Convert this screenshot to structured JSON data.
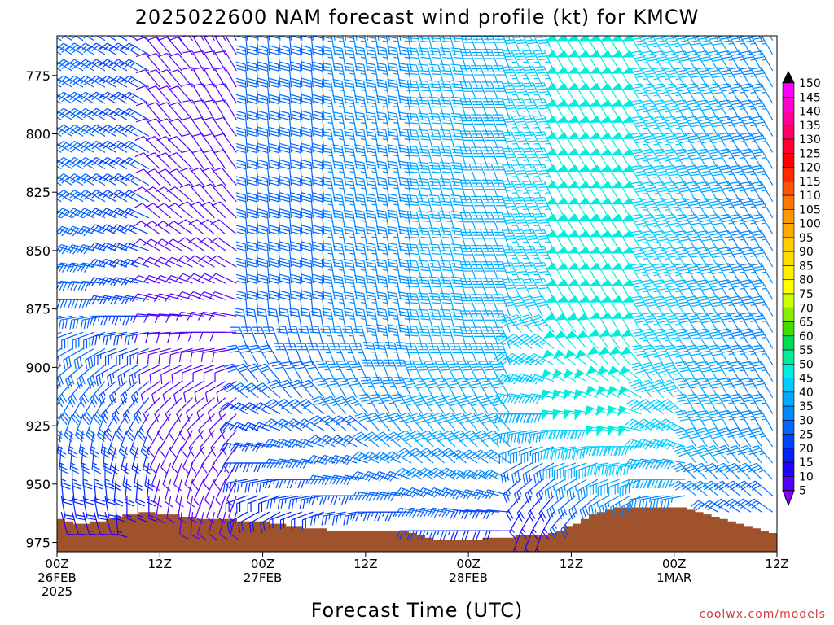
{
  "chart_data": {
    "type": "wind-barb-profile",
    "title": "2025022600 NAM forecast wind profile (kt) for KMCW",
    "xlabel": "Forecast Time (UTC)",
    "ylabel": "",
    "credit": "coolwx.com/models",
    "y_axis": {
      "scale": "pressure (hPa), increasing downward",
      "range": [
        979,
        758
      ],
      "tick_labels": [
        "775",
        "800",
        "825",
        "850",
        "875",
        "900",
        "925",
        "950",
        "975"
      ]
    },
    "x_axis": {
      "range_hours": [
        0,
        84
      ],
      "ticks": [
        {
          "lines": [
            "00Z",
            "26FEB",
            "2025"
          ]
        },
        {
          "lines": [
            "12Z"
          ]
        },
        {
          "lines": [
            "00Z",
            "27FEB"
          ]
        },
        {
          "lines": [
            "12Z"
          ]
        },
        {
          "lines": [
            "00Z",
            "28FEB"
          ]
        },
        {
          "lines": [
            "12Z"
          ]
        },
        {
          "lines": [
            "00Z",
            "1MAR"
          ]
        },
        {
          "lines": [
            "12Z"
          ]
        }
      ]
    },
    "colorbar": {
      "labels": [
        "150",
        "145",
        "140",
        "135",
        "130",
        "125",
        "120",
        "115",
        "110",
        "105",
        "100",
        "95",
        "90",
        "85",
        "80",
        "75",
        "70",
        "65",
        "60",
        "55",
        "50",
        "45",
        "40",
        "35",
        "30",
        "25",
        "20",
        "15",
        "10",
        "5"
      ],
      "colors": [
        "#ff00ff",
        "#ff00cc",
        "#ff0099",
        "#ff0066",
        "#ff0033",
        "#ff0000",
        "#ff2a00",
        "#ff5500",
        "#ff7700",
        "#ff9900",
        "#ffaa00",
        "#ffcc00",
        "#ffdd00",
        "#ffee00",
        "#ffff00",
        "#ccff00",
        "#88ee00",
        "#44dd00",
        "#00dd55",
        "#00ee99",
        "#00eedd",
        "#00ccff",
        "#00aaff",
        "#0088ff",
        "#0066ff",
        "#0044ff",
        "#0022ff",
        "#2200ff",
        "#5500ff",
        "#8800ff"
      ]
    },
    "surface_pressure_hPa": [
      965,
      966,
      967,
      967,
      966,
      966,
      965,
      964,
      963,
      963,
      962,
      962,
      963,
      963,
      963,
      964,
      964,
      965,
      965,
      965,
      965,
      965,
      966,
      966,
      966,
      966,
      967,
      967,
      968,
      968,
      969,
      969,
      969,
      970,
      970,
      970,
      970,
      970,
      970,
      970,
      970,
      970,
      970,
      971,
      972,
      973,
      974,
      974,
      974,
      974,
      974,
      974,
      973,
      973,
      973,
      973,
      972,
      972,
      972,
      972,
      971,
      970,
      968,
      967,
      965,
      963,
      962,
      961,
      960,
      960,
      960,
      960,
      960,
      960,
      960,
      960,
      960,
      961,
      962,
      963,
      964,
      965,
      966,
      967,
      968,
      969,
      970,
      971,
      972
    ],
    "wind_levels_hPa": [
      970,
      962,
      955,
      948,
      941,
      934,
      927,
      920,
      913,
      906,
      899,
      892,
      885,
      878,
      871,
      864,
      857,
      850,
      843,
      836,
      829,
      822,
      815,
      808,
      801,
      794,
      787,
      780,
      773,
      766,
      760
    ],
    "wind_direction_deg": [
      [
        160,
        165,
        170,
        175,
        180,
        185,
        190,
        200,
        210,
        220,
        230,
        240,
        250,
        260,
        270,
        275,
        280,
        285,
        290,
        295,
        300,
        300,
        300,
        300,
        300,
        300,
        300,
        300,
        300,
        300,
        300
      ],
      [
        170,
        175,
        180,
        185,
        190,
        195,
        200,
        210,
        220,
        230,
        240,
        250,
        260,
        270,
        280,
        285,
        290,
        290,
        295,
        295,
        300,
        300,
        300,
        300,
        300,
        300,
        300,
        300,
        300,
        300,
        300
      ],
      [
        180,
        185,
        190,
        195,
        200,
        205,
        210,
        215,
        225,
        235,
        245,
        255,
        265,
        275,
        285,
        290,
        295,
        300,
        305,
        310,
        310,
        315,
        315,
        315,
        320,
        320,
        320,
        320,
        320,
        320,
        320
      ],
      [
        190,
        195,
        200,
        205,
        210,
        215,
        220,
        225,
        230,
        240,
        250,
        260,
        270,
        280,
        290,
        295,
        300,
        305,
        310,
        315,
        320,
        320,
        325,
        325,
        325,
        330,
        330,
        330,
        330,
        330,
        330
      ],
      [
        230,
        240,
        250,
        260,
        270,
        280,
        290,
        300,
        310,
        320,
        330,
        340,
        350,
        355,
        355,
        355,
        355,
        355,
        355,
        355,
        355,
        355,
        355,
        355,
        355,
        355,
        355,
        355,
        355,
        355,
        355
      ],
      [
        240,
        250,
        260,
        270,
        280,
        290,
        300,
        310,
        320,
        330,
        340,
        345,
        350,
        355,
        355,
        355,
        355,
        355,
        355,
        355,
        355,
        355,
        355,
        355,
        355,
        355,
        355,
        355,
        355,
        355,
        355
      ],
      [
        250,
        260,
        270,
        280,
        290,
        300,
        310,
        320,
        330,
        335,
        340,
        345,
        350,
        350,
        350,
        350,
        350,
        350,
        350,
        350,
        350,
        350,
        350,
        350,
        350,
        350,
        350,
        350,
        350,
        350,
        350
      ],
      [
        260,
        270,
        280,
        290,
        300,
        310,
        320,
        330,
        335,
        340,
        345,
        350,
        350,
        350,
        350,
        350,
        350,
        350,
        350,
        350,
        350,
        350,
        350,
        350,
        350,
        350,
        350,
        350,
        350,
        350,
        350
      ],
      [
        270,
        280,
        290,
        300,
        310,
        315,
        320,
        325,
        330,
        335,
        340,
        345,
        345,
        345,
        345,
        345,
        345,
        345,
        345,
        345,
        345,
        345,
        345,
        345,
        345,
        345,
        345,
        345,
        345,
        345,
        345
      ],
      [
        270,
        275,
        285,
        295,
        305,
        315,
        320,
        325,
        330,
        335,
        340,
        340,
        340,
        340,
        340,
        340,
        340,
        340,
        340,
        340,
        340,
        340,
        340,
        340,
        340,
        340,
        340,
        340,
        340,
        340,
        340
      ],
      [
        200,
        210,
        220,
        230,
        240,
        250,
        260,
        270,
        280,
        290,
        300,
        310,
        320,
        330,
        335,
        335,
        335,
        335,
        335,
        335,
        335,
        335,
        335,
        335,
        335,
        335,
        335,
        335,
        335,
        335,
        335
      ],
      [
        210,
        220,
        230,
        240,
        250,
        260,
        270,
        280,
        290,
        300,
        310,
        320,
        325,
        330,
        330,
        330,
        330,
        330,
        330,
        330,
        330,
        330,
        330,
        330,
        330,
        330,
        330,
        330,
        330,
        330,
        330
      ],
      [
        220,
        230,
        240,
        250,
        260,
        270,
        280,
        290,
        300,
        310,
        320,
        325,
        330,
        330,
        330,
        330,
        330,
        330,
        330,
        330,
        330,
        330,
        330,
        330,
        330,
        330,
        330,
        330,
        330,
        330,
        330
      ],
      [
        240,
        250,
        260,
        270,
        280,
        290,
        300,
        310,
        320,
        325,
        330,
        330,
        330,
        330,
        330,
        330,
        330,
        330,
        330,
        330,
        330,
        330,
        330,
        330,
        330,
        330,
        330,
        330,
        330,
        330,
        330
      ],
      [
        290,
        300,
        310,
        315,
        320,
        325,
        330,
        330,
        330,
        330,
        330,
        330,
        330,
        330,
        330,
        330,
        330,
        330,
        330,
        330,
        330,
        330,
        330,
        330,
        330,
        330,
        330,
        330,
        330,
        330,
        330
      ],
      [
        300,
        305,
        310,
        315,
        320,
        325,
        330,
        330,
        330,
        330,
        330,
        330,
        330,
        330,
        330,
        330,
        330,
        330,
        330,
        330,
        330,
        330,
        330,
        330,
        330,
        330,
        330,
        330,
        330,
        330,
        330
      ]
    ],
    "wind_speed_kt": [
      [
        15,
        15,
        20,
        20,
        25,
        25,
        25,
        30,
        30,
        30,
        30,
        30,
        30,
        30,
        30,
        30,
        30,
        30,
        30,
        30,
        30,
        30,
        30,
        30,
        30,
        30,
        30,
        30,
        30,
        30,
        30
      ],
      [
        15,
        15,
        15,
        20,
        20,
        20,
        25,
        25,
        25,
        25,
        25,
        25,
        25,
        25,
        25,
        25,
        25,
        25,
        25,
        25,
        25,
        25,
        25,
        25,
        25,
        25,
        25,
        25,
        25,
        25,
        25
      ],
      [
        10,
        10,
        10,
        10,
        10,
        10,
        10,
        10,
        10,
        10,
        10,
        10,
        10,
        10,
        10,
        10,
        10,
        10,
        10,
        10,
        10,
        10,
        10,
        10,
        10,
        10,
        10,
        10,
        10,
        10,
        10
      ],
      [
        10,
        10,
        10,
        10,
        10,
        10,
        10,
        10,
        10,
        10,
        10,
        10,
        10,
        10,
        10,
        10,
        10,
        10,
        10,
        10,
        10,
        10,
        10,
        10,
        10,
        10,
        10,
        10,
        10,
        10,
        10
      ],
      [
        15,
        20,
        20,
        25,
        25,
        25,
        25,
        25,
        30,
        30,
        30,
        30,
        30,
        30,
        30,
        30,
        30,
        30,
        30,
        30,
        30,
        30,
        30,
        30,
        30,
        30,
        30,
        30,
        30,
        30,
        30
      ],
      [
        20,
        20,
        25,
        25,
        30,
        30,
        30,
        30,
        30,
        30,
        30,
        30,
        30,
        30,
        30,
        30,
        30,
        30,
        30,
        30,
        30,
        30,
        30,
        30,
        30,
        30,
        30,
        30,
        30,
        30,
        30
      ],
      [
        20,
        25,
        25,
        30,
        30,
        30,
        30,
        35,
        35,
        35,
        35,
        35,
        35,
        35,
        35,
        35,
        35,
        35,
        35,
        35,
        35,
        35,
        35,
        35,
        35,
        35,
        35,
        35,
        35,
        35,
        35
      ],
      [
        25,
        25,
        30,
        30,
        35,
        35,
        35,
        35,
        35,
        35,
        35,
        35,
        35,
        35,
        35,
        35,
        35,
        35,
        35,
        35,
        35,
        35,
        35,
        35,
        35,
        35,
        35,
        35,
        35,
        35,
        35
      ],
      [
        25,
        30,
        30,
        35,
        35,
        40,
        40,
        40,
        40,
        40,
        40,
        40,
        40,
        40,
        40,
        40,
        40,
        40,
        40,
        40,
        40,
        40,
        40,
        40,
        40,
        40,
        40,
        40,
        40,
        40,
        40
      ],
      [
        20,
        25,
        30,
        35,
        35,
        40,
        40,
        40,
        40,
        40,
        40,
        40,
        40,
        40,
        40,
        40,
        40,
        40,
        40,
        40,
        40,
        40,
        40,
        40,
        40,
        40,
        40,
        40,
        40,
        40,
        40
      ],
      [
        15,
        15,
        20,
        25,
        30,
        35,
        40,
        40,
        45,
        45,
        45,
        45,
        45,
        45,
        45,
        45,
        45,
        45,
        45,
        45,
        45,
        45,
        45,
        45,
        45,
        45,
        45,
        45,
        45,
        45,
        45
      ],
      [
        20,
        25,
        30,
        35,
        40,
        45,
        45,
        50,
        50,
        50,
        50,
        50,
        50,
        50,
        50,
        50,
        50,
        50,
        50,
        50,
        50,
        50,
        50,
        50,
        50,
        50,
        50,
        50,
        50,
        50,
        50
      ],
      [
        25,
        30,
        35,
        40,
        45,
        45,
        50,
        50,
        50,
        50,
        50,
        50,
        50,
        50,
        50,
        50,
        50,
        50,
        50,
        50,
        50,
        50,
        50,
        50,
        50,
        50,
        50,
        50,
        50,
        50,
        50
      ],
      [
        25,
        30,
        35,
        40,
        40,
        45,
        45,
        45,
        45,
        45,
        45,
        45,
        45,
        45,
        45,
        45,
        45,
        45,
        45,
        45,
        45,
        45,
        45,
        45,
        45,
        45,
        45,
        45,
        45,
        45,
        45
      ],
      [
        25,
        30,
        35,
        35,
        40,
        40,
        40,
        40,
        40,
        40,
        40,
        40,
        40,
        40,
        40,
        40,
        40,
        40,
        40,
        40,
        40,
        40,
        40,
        40,
        40,
        40,
        40,
        40,
        40,
        40,
        40
      ],
      [
        25,
        30,
        30,
        35,
        35,
        35,
        35,
        35,
        35,
        35,
        35,
        35,
        35,
        35,
        35,
        35,
        35,
        35,
        35,
        35,
        35,
        35,
        35,
        35,
        35,
        35,
        35,
        35,
        35,
        35,
        35
      ]
    ]
  }
}
